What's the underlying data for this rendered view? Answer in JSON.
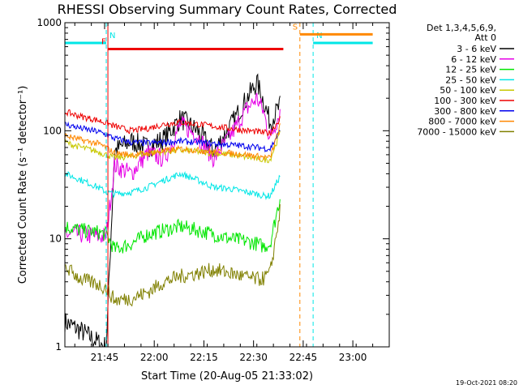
{
  "chart_data": {
    "type": "line",
    "title": "RHESSI Observing Summary Count Rates, Corrected",
    "xlabel": "Start Time (20-Aug-05 21:33:02)",
    "ylabel": "Corrected Count Rate (s⁻¹ detector⁻¹)",
    "y_scale": "log",
    "ylim": [
      1,
      1000
    ],
    "xlim": [
      "21:33",
      "23:11"
    ],
    "x_unit": "minutes after 21:33:02",
    "x_ticks": [
      {
        "label": "21:45",
        "t": 12
      },
      {
        "label": "22:00",
        "t": 27
      },
      {
        "label": "22:15",
        "t": 42
      },
      {
        "label": "22:30",
        "t": 57
      },
      {
        "label": "22:45",
        "t": 72
      },
      {
        "label": "23:00",
        "t": 87
      }
    ],
    "y_ticks": [
      {
        "label": "1",
        "v": 1
      },
      {
        "label": "10",
        "v": 10
      },
      {
        "label": "100",
        "v": 100
      },
      {
        "label": "1000",
        "v": 1000
      }
    ],
    "legend": {
      "position": "right",
      "header": [
        "Det 1,3,4,5,6,9,",
        "Att 0"
      ]
    },
    "grid": false,
    "x": [
      0,
      5,
      10,
      12.5,
      15,
      20,
      25,
      30,
      35,
      40,
      45,
      50,
      55,
      58,
      60,
      62,
      65
    ],
    "series": [
      {
        "name": "3 - 6 keV",
        "color": "#000000",
        "values": [
          1.7,
          1.4,
          1.1,
          1.0,
          65,
          80,
          70,
          85,
          130,
          100,
          65,
          110,
          200,
          280,
          190,
          120,
          170
        ]
      },
      {
        "name": "6 - 12 keV",
        "color": "#e600e6",
        "values": [
          11,
          11,
          10.5,
          10.5,
          48,
          40,
          62,
          55,
          115,
          90,
          55,
          90,
          160,
          200,
          150,
          85,
          150
        ]
      },
      {
        "name": "12 - 25 keV",
        "color": "#00e600",
        "values": [
          13,
          12,
          11.5,
          11,
          8,
          9,
          11,
          12,
          13,
          12,
          11,
          10,
          9.5,
          9,
          8.5,
          9,
          24
        ]
      },
      {
        "name": "25 - 50 keV",
        "color": "#00e6e6",
        "values": [
          40,
          35,
          30,
          27,
          26,
          27,
          30,
          35,
          40,
          35,
          30,
          29,
          27,
          26,
          25,
          25,
          38
        ]
      },
      {
        "name": "50 - 100 keV",
        "color": "#c8c800",
        "values": [
          78,
          70,
          64,
          60,
          56,
          58,
          62,
          64,
          66,
          64,
          62,
          60,
          57,
          55,
          54,
          54,
          95
        ]
      },
      {
        "name": "100 - 300 keV",
        "color": "#ee0000",
        "values": [
          150,
          135,
          125,
          118,
          110,
          100,
          105,
          115,
          120,
          115,
          110,
          105,
          100,
          98,
          96,
          95,
          130
        ]
      },
      {
        "name": "300 - 800 keV",
        "color": "#0000ee",
        "values": [
          115,
          105,
          98,
          92,
          85,
          78,
          77,
          78,
          80,
          78,
          76,
          74,
          72,
          70,
          69,
          68,
          100
        ]
      },
      {
        "name": "800 - 7000 keV",
        "color": "#ff8800",
        "values": [
          90,
          82,
          76,
          70,
          62,
          60,
          62,
          65,
          68,
          66,
          64,
          62,
          60,
          58,
          57,
          56,
          110
        ]
      },
      {
        "name": "7000 - 15000 keV",
        "color": "#808000",
        "values": [
          5.5,
          4.2,
          3.8,
          3.5,
          2.7,
          2.8,
          3.2,
          4.0,
          4.5,
          4.8,
          5.2,
          4.8,
          4.4,
          4.2,
          4.3,
          4.8,
          18
        ]
      }
    ],
    "attenuator_markers": [
      {
        "label": "N",
        "color": "#00e6e6",
        "t": 12.5,
        "span_t": [
          0,
          12.5
        ],
        "level": 650
      },
      {
        "label": "N",
        "color": "#00e6e6",
        "t": 75,
        "span_t": [
          75,
          93
        ],
        "level": 650
      },
      {
        "label": "F",
        "color": "#ee0000",
        "t": 13,
        "span_t": [
          13,
          66
        ],
        "level": 570
      },
      {
        "label": "S",
        "color": "#ff8800",
        "t": 71,
        "span_t": [
          71,
          93
        ],
        "level": 780
      }
    ],
    "footer_date": "19-Oct-2021 08:20"
  }
}
